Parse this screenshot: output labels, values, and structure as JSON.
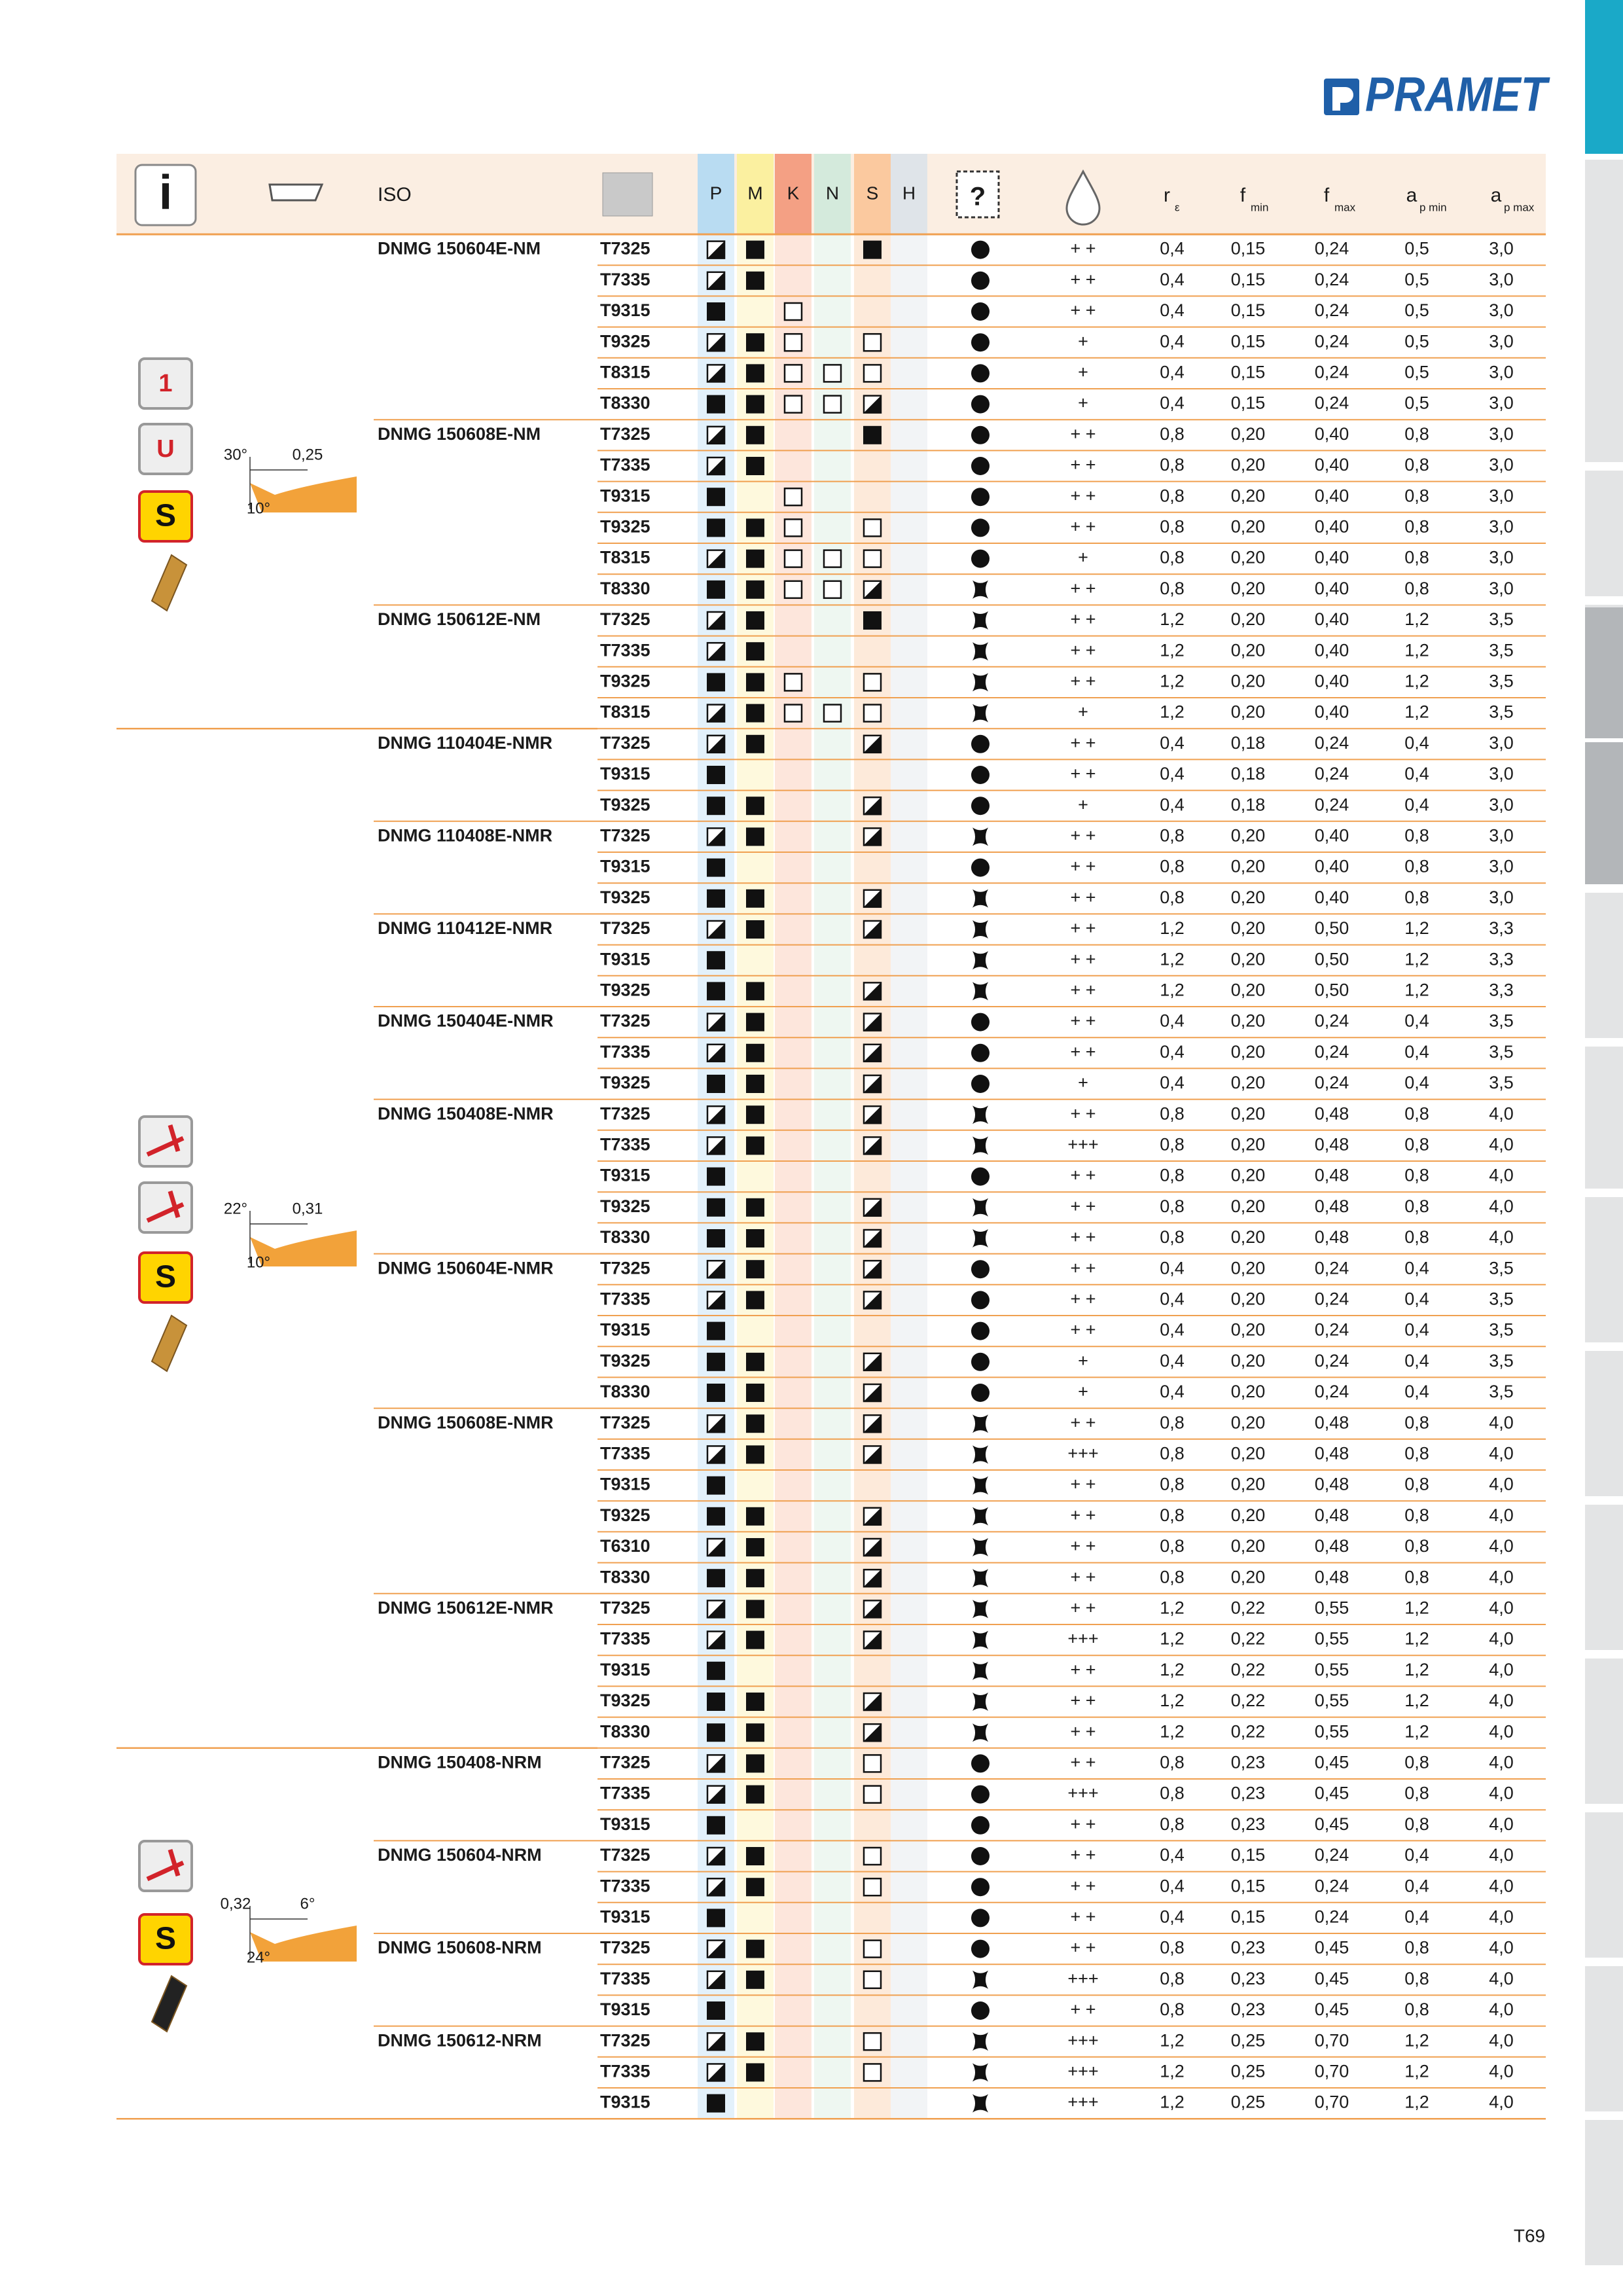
{
  "header": {
    "logo": "PRAMET",
    "iso": "ISO",
    "materials": [
      "P",
      "M",
      "K",
      "N",
      "S",
      "H"
    ],
    "re": {
      "main": "r",
      "sub": "ε"
    },
    "fmin": {
      "main": "f",
      "sub": "min"
    },
    "fmax": {
      "main": "f",
      "sub": "max"
    },
    "apmin": {
      "main": "a",
      "sub": "p min"
    },
    "apmax": {
      "main": "a",
      "sub": "p max"
    }
  },
  "groups": [
    {
      "icon_labels": [
        "1",
        "U",
        "S"
      ],
      "diagram_labels": [
        "30°",
        "0,25",
        "10°"
      ],
      "products": [
        {
          "iso": "DNMG 150604E-NM",
          "rows": [
            [
              "T7325",
              "+ +",
              "0,4",
              "0,15",
              "0,24",
              "0,5",
              "3,0"
            ],
            [
              "T7335",
              "+ +",
              "0,4",
              "0,15",
              "0,24",
              "0,5",
              "3,0"
            ],
            [
              "T9315",
              "+ +",
              "0,4",
              "0,15",
              "0,24",
              "0,5",
              "3,0"
            ],
            [
              "T9325",
              "+",
              "0,4",
              "0,15",
              "0,24",
              "0,5",
              "3,0"
            ],
            [
              "T8315",
              "+",
              "0,4",
              "0,15",
              "0,24",
              "0,5",
              "3,0"
            ],
            [
              "T8330",
              "+",
              "0,4",
              "0,15",
              "0,24",
              "0,5",
              "3,0"
            ]
          ]
        },
        {
          "iso": "DNMG 150608E-NM",
          "rows": [
            [
              "T7325",
              "+ +",
              "0,8",
              "0,20",
              "0,40",
              "0,8",
              "3,0"
            ],
            [
              "T7335",
              "+ +",
              "0,8",
              "0,20",
              "0,40",
              "0,8",
              "3,0"
            ],
            [
              "T9315",
              "+ +",
              "0,8",
              "0,20",
              "0,40",
              "0,8",
              "3,0"
            ],
            [
              "T9325",
              "+ +",
              "0,8",
              "0,20",
              "0,40",
              "0,8",
              "3,0"
            ],
            [
              "T8315",
              "+",
              "0,8",
              "0,20",
              "0,40",
              "0,8",
              "3,0"
            ],
            [
              "T8330",
              "+ +",
              "0,8",
              "0,20",
              "0,40",
              "0,8",
              "3,0"
            ]
          ]
        },
        {
          "iso": "DNMG 150612E-NM",
          "rows": [
            [
              "T7325",
              "+ +",
              "1,2",
              "0,20",
              "0,40",
              "1,2",
              "3,5"
            ],
            [
              "T7335",
              "+ +",
              "1,2",
              "0,20",
              "0,40",
              "1,2",
              "3,5"
            ],
            [
              "T9325",
              "+ +",
              "1,2",
              "0,20",
              "0,40",
              "1,2",
              "3,5"
            ],
            [
              "T8315",
              "+",
              "1,2",
              "0,20",
              "0,40",
              "1,2",
              "3,5"
            ]
          ]
        }
      ]
    },
    {
      "icon_labels": [
        "S"
      ],
      "diagram_labels": [
        "22°",
        "0,31",
        "10°"
      ],
      "products": [
        {
          "iso": "DNMG 110404E-NMR",
          "rows": [
            [
              "T7325",
              "+ +",
              "0,4",
              "0,18",
              "0,24",
              "0,4",
              "3,0"
            ],
            [
              "T9315",
              "+ +",
              "0,4",
              "0,18",
              "0,24",
              "0,4",
              "3,0"
            ],
            [
              "T9325",
              "+",
              "0,4",
              "0,18",
              "0,24",
              "0,4",
              "3,0"
            ]
          ]
        },
        {
          "iso": "DNMG 110408E-NMR",
          "rows": [
            [
              "T7325",
              "+ +",
              "0,8",
              "0,20",
              "0,40",
              "0,8",
              "3,0"
            ],
            [
              "T9315",
              "+ +",
              "0,8",
              "0,20",
              "0,40",
              "0,8",
              "3,0"
            ],
            [
              "T9325",
              "+ +",
              "0,8",
              "0,20",
              "0,40",
              "0,8",
              "3,0"
            ]
          ]
        },
        {
          "iso": "DNMG 110412E-NMR",
          "rows": [
            [
              "T7325",
              "+ +",
              "1,2",
              "0,20",
              "0,50",
              "1,2",
              "3,3"
            ],
            [
              "T9315",
              "+ +",
              "1,2",
              "0,20",
              "0,50",
              "1,2",
              "3,3"
            ],
            [
              "T9325",
              "+ +",
              "1,2",
              "0,20",
              "0,50",
              "1,2",
              "3,3"
            ]
          ]
        },
        {
          "iso": "DNMG 150404E-NMR",
          "rows": [
            [
              "T7325",
              "+ +",
              "0,4",
              "0,20",
              "0,24",
              "0,4",
              "3,5"
            ],
            [
              "T7335",
              "+ +",
              "0,4",
              "0,20",
              "0,24",
              "0,4",
              "3,5"
            ],
            [
              "T9325",
              "+",
              "0,4",
              "0,20",
              "0,24",
              "0,4",
              "3,5"
            ]
          ]
        },
        {
          "iso": "DNMG 150408E-NMR",
          "rows": [
            [
              "T7325",
              "+ +",
              "0,8",
              "0,20",
              "0,48",
              "0,8",
              "4,0"
            ],
            [
              "T7335",
              "+++",
              "0,8",
              "0,20",
              "0,48",
              "0,8",
              "4,0"
            ],
            [
              "T9315",
              "+ +",
              "0,8",
              "0,20",
              "0,48",
              "0,8",
              "4,0"
            ],
            [
              "T9325",
              "+ +",
              "0,8",
              "0,20",
              "0,48",
              "0,8",
              "4,0"
            ],
            [
              "T8330",
              "+ +",
              "0,8",
              "0,20",
              "0,48",
              "0,8",
              "4,0"
            ]
          ]
        },
        {
          "iso": "DNMG 150604E-NMR",
          "rows": [
            [
              "T7325",
              "+ +",
              "0,4",
              "0,20",
              "0,24",
              "0,4",
              "3,5"
            ],
            [
              "T7335",
              "+ +",
              "0,4",
              "0,20",
              "0,24",
              "0,4",
              "3,5"
            ],
            [
              "T9315",
              "+ +",
              "0,4",
              "0,20",
              "0,24",
              "0,4",
              "3,5"
            ],
            [
              "T9325",
              "+",
              "0,4",
              "0,20",
              "0,24",
              "0,4",
              "3,5"
            ],
            [
              "T8330",
              "+",
              "0,4",
              "0,20",
              "0,24",
              "0,4",
              "3,5"
            ]
          ]
        },
        {
          "iso": "DNMG 150608E-NMR",
          "rows": [
            [
              "T7325",
              "+ +",
              "0,8",
              "0,20",
              "0,48",
              "0,8",
              "4,0"
            ],
            [
              "T7335",
              "+++",
              "0,8",
              "0,20",
              "0,48",
              "0,8",
              "4,0"
            ],
            [
              "T9315",
              "+ +",
              "0,8",
              "0,20",
              "0,48",
              "0,8",
              "4,0"
            ],
            [
              "T9325",
              "+ +",
              "0,8",
              "0,20",
              "0,48",
              "0,8",
              "4,0"
            ],
            [
              "T6310",
              "+ +",
              "0,8",
              "0,20",
              "0,48",
              "0,8",
              "4,0"
            ],
            [
              "T8330",
              "+ +",
              "0,8",
              "0,20",
              "0,48",
              "0,8",
              "4,0"
            ]
          ]
        },
        {
          "iso": "DNMG 150612E-NMR",
          "rows": [
            [
              "T7325",
              "+ +",
              "1,2",
              "0,22",
              "0,55",
              "1,2",
              "4,0"
            ],
            [
              "T7335",
              "+++",
              "1,2",
              "0,22",
              "0,55",
              "1,2",
              "4,0"
            ],
            [
              "T9315",
              "+ +",
              "1,2",
              "0,22",
              "0,55",
              "1,2",
              "4,0"
            ],
            [
              "T9325",
              "+ +",
              "1,2",
              "0,22",
              "0,55",
              "1,2",
              "4,0"
            ],
            [
              "T8330",
              "+ +",
              "1,2",
              "0,22",
              "0,55",
              "1,2",
              "4,0"
            ]
          ]
        }
      ]
    },
    {
      "icon_labels": [
        "S"
      ],
      "diagram_labels": [
        "0,32",
        "6°",
        "24°"
      ],
      "products": [
        {
          "iso": "DNMG 150408-NRM",
          "rows": [
            [
              "T7325",
              "+ +",
              "0,8",
              "0,23",
              "0,45",
              "0,8",
              "4,0"
            ],
            [
              "T7335",
              "+++",
              "0,8",
              "0,23",
              "0,45",
              "0,8",
              "4,0"
            ],
            [
              "T9315",
              "+ +",
              "0,8",
              "0,23",
              "0,45",
              "0,8",
              "4,0"
            ]
          ]
        },
        {
          "iso": "DNMG 150604-NRM",
          "rows": [
            [
              "T7325",
              "+ +",
              "0,4",
              "0,15",
              "0,24",
              "0,4",
              "4,0"
            ],
            [
              "T7335",
              "+ +",
              "0,4",
              "0,15",
              "0,24",
              "0,4",
              "4,0"
            ],
            [
              "T9315",
              "+ +",
              "0,4",
              "0,15",
              "0,24",
              "0,4",
              "4,0"
            ]
          ]
        },
        {
          "iso": "DNMG 150608-NRM",
          "rows": [
            [
              "T7325",
              "+ +",
              "0,8",
              "0,23",
              "0,45",
              "0,8",
              "4,0"
            ],
            [
              "T7335",
              "+++",
              "0,8",
              "0,23",
              "0,45",
              "0,8",
              "4,0"
            ],
            [
              "T9315",
              "+ +",
              "0,8",
              "0,23",
              "0,45",
              "0,8",
              "4,0"
            ]
          ]
        },
        {
          "iso": "DNMG 150612-NRM",
          "rows": [
            [
              "T7325",
              "+++",
              "1,2",
              "0,25",
              "0,70",
              "1,2",
              "4,0"
            ],
            [
              "T7335",
              "+++",
              "1,2",
              "0,25",
              "0,70",
              "1,2",
              "4,0"
            ],
            [
              "T9315",
              "+++",
              "1,2",
              "0,25",
              "0,70",
              "1,2",
              "4,0"
            ]
          ]
        }
      ]
    }
  ],
  "page_number": "T69"
}
